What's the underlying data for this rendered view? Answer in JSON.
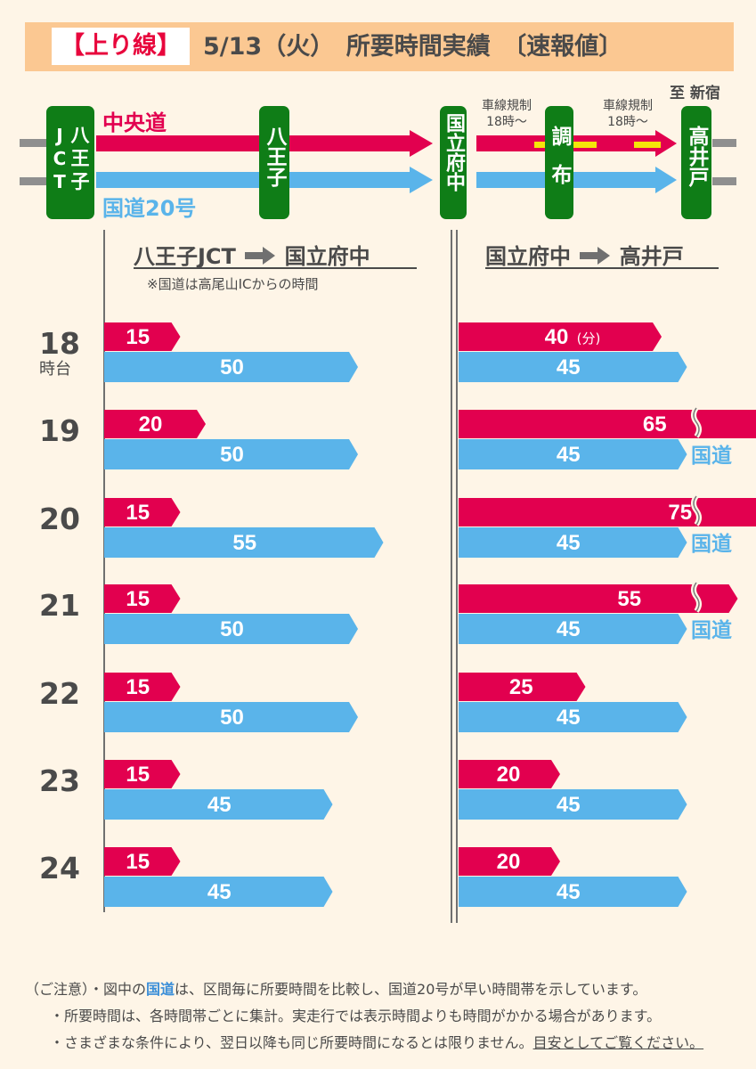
{
  "header": {
    "tag": "【上り線】",
    "title": "5/13（火）　所要時間実績　〔速報値〕"
  },
  "route": {
    "destination": "至 新宿",
    "chuo_label": "中央道",
    "kokudo_label": "国道20号",
    "stations": {
      "hachioji_jct": "八王子JCT",
      "hachioji": "八王子",
      "kunitachifuchu": "国立府中",
      "chofu": "調布",
      "takaido": "高井戸"
    },
    "restriction_1": [
      "車線規制",
      "18時～"
    ],
    "restriction_2": [
      "車線規制",
      "18時～"
    ]
  },
  "sections": {
    "left_from": "八王子JCT",
    "left_to": "国立府中",
    "left_note": "※国道は高尾山ICからの時間",
    "right_from": "国立府中",
    "right_to": "高井戸"
  },
  "hour_suffix": "時台",
  "unit_label": "(分)",
  "kokudo_short": "国道",
  "colors": {
    "chuo": "#e2004f",
    "kokudo": "#5ab4ea",
    "sign": "#0f7d17",
    "banner": "#fbc892"
  },
  "chart_data": {
    "type": "bar",
    "categories": [
      "18",
      "19",
      "20",
      "21",
      "22",
      "23",
      "24"
    ],
    "unit": "分",
    "series": [
      {
        "name": "中央道",
        "section": "八王子JCT→国立府中",
        "values": [
          15,
          20,
          15,
          15,
          15,
          15,
          15
        ]
      },
      {
        "name": "国道20号",
        "section": "八王子JCT→国立府中",
        "values": [
          50,
          50,
          55,
          50,
          50,
          45,
          45
        ]
      },
      {
        "name": "中央道",
        "section": "国立府中→高井戸",
        "values": [
          40,
          65,
          75,
          55,
          25,
          20,
          20
        ]
      },
      {
        "name": "国道20号",
        "section": "国立府中→高井戸",
        "values": [
          45,
          45,
          45,
          45,
          45,
          45,
          45
        ]
      }
    ],
    "kokudo_faster_hours": [
      "19",
      "20",
      "21"
    ]
  },
  "notes": {
    "prefix": "（ご注意）",
    "line1_a": "・図中の",
    "line1_hl": "国道",
    "line1_b": "は、区間毎に所要時間を比較し、国道20号が早い時間帯を示しています。",
    "line2": "・所要時間は、各時間帯ごとに集計。実走行では表示時間よりも時間がかかる場合があります。",
    "line3_a": "・さまざまな条件により、翌日以降も同じ所要時間になるとは限りません。",
    "line3_u": "目安としてご覧ください。"
  }
}
